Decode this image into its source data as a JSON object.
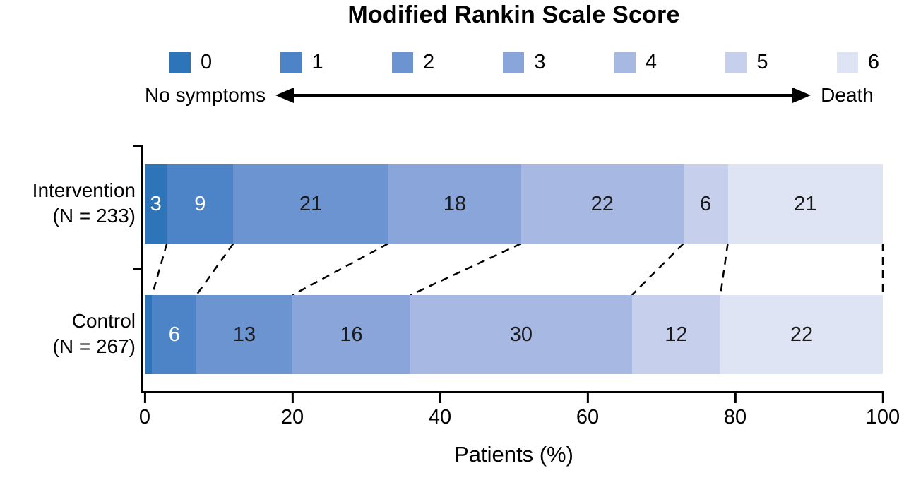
{
  "chart_data": {
    "type": "bar",
    "variant": "horizontal-stacked-100pct",
    "title": "Modified Rankin Scale Score",
    "xlabel": "Patients (%)",
    "xlim": [
      0,
      100
    ],
    "x_ticks": [
      0,
      20,
      40,
      60,
      80,
      100
    ],
    "grid": "off",
    "legend": {
      "position": "top",
      "categories": [
        "0",
        "1",
        "2",
        "3",
        "4",
        "5",
        "6"
      ],
      "colors": [
        "#2d74b9",
        "#4c84c7",
        "#6c94d0",
        "#8aa5d9",
        "#a7b8e2",
        "#c6cfec",
        "#dfe4f4"
      ],
      "left_anchor": "No symptoms",
      "right_anchor": "Death"
    },
    "label_text_colors": [
      "#ffffff",
      "#ffffff",
      "#1a1a1a",
      "#1a1a1a",
      "#1a1a1a",
      "#1a1a1a",
      "#1a1a1a"
    ],
    "series": [
      {
        "name": "Intervention",
        "n_label": "(N = 233)",
        "values": [
          3,
          9,
          21,
          18,
          22,
          6,
          21
        ],
        "labels": [
          "3",
          "9",
          "21",
          "18",
          "22",
          "6",
          "21"
        ]
      },
      {
        "name": "Control",
        "n_label": "(N = 267)",
        "values": [
          1,
          6,
          13,
          16,
          30,
          12,
          22
        ],
        "labels": [
          "",
          "6",
          "13",
          "16",
          "30",
          "12",
          "22"
        ]
      }
    ]
  }
}
